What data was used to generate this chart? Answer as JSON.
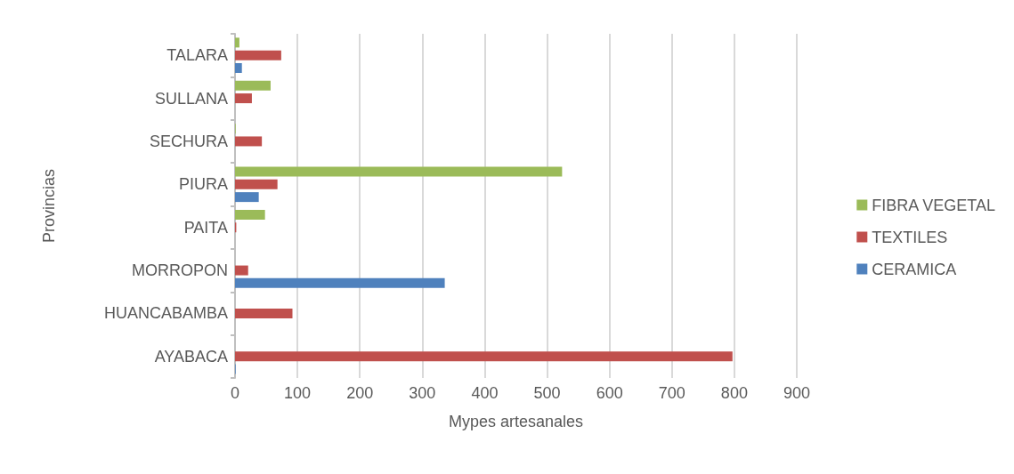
{
  "chart_data": {
    "type": "bar",
    "orientation": "horizontal",
    "xlabel": "Mypes artesanales",
    "ylabel": "Provincias",
    "categories": [
      "TALARA",
      "SULLANA",
      "SECHURA",
      "PIURA",
      "PAITA",
      "MORROPON",
      "HUANCABAMBA",
      "AYABACA"
    ],
    "series": [
      {
        "name": "FIBRA VEGETAL",
        "color": "#9bbb59",
        "values": [
          7,
          57,
          1,
          524,
          48,
          0,
          0,
          0
        ]
      },
      {
        "name": "TEXTILES",
        "color": "#c0504d",
        "values": [
          74,
          27,
          43,
          68,
          2,
          21,
          92,
          797
        ]
      },
      {
        "name": "CERAMICA",
        "color": "#4f81bd",
        "values": [
          11,
          0,
          0,
          38,
          0,
          336,
          0,
          1
        ]
      }
    ],
    "xlim": [
      0,
      900
    ],
    "xticks": [
      0,
      100,
      200,
      300,
      400,
      500,
      600,
      700,
      800,
      900
    ],
    "grid": "x",
    "legend": "right"
  }
}
